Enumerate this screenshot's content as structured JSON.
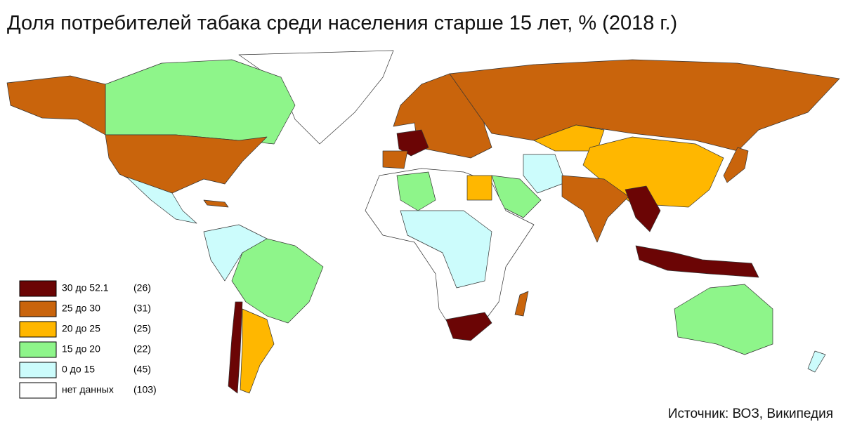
{
  "title": "Доля потребителей табака среди населения старше 15 лет, % (2018 г.)",
  "legend": {
    "items": [
      {
        "label": "30 до 52.1",
        "count": "(26)",
        "color": "#6b0505"
      },
      {
        "label": "25 до 30",
        "count": "(31)",
        "color": "#c9640c"
      },
      {
        "label": "20 до 25",
        "count": "(25)",
        "color": "#ffb700"
      },
      {
        "label": "15 до 20",
        "count": "(22)",
        "color": "#8ef58a"
      },
      {
        "label": "0 до 15",
        "count": "(45)",
        "color": "#ccfcfc"
      },
      {
        "label": "нет данных",
        "count": "(103)",
        "color": "#ffffff"
      }
    ]
  },
  "source": "Источник: ВОЗ, Википедия"
}
